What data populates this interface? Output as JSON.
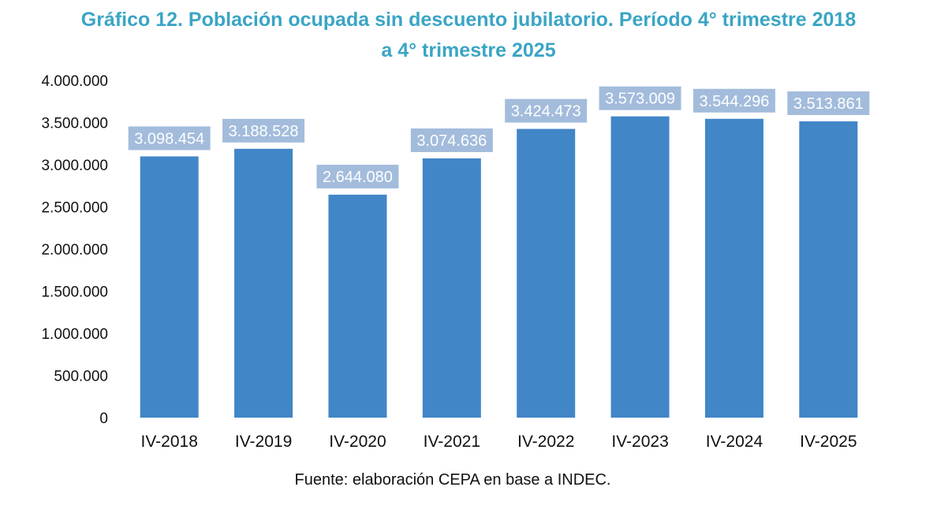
{
  "chart_data": {
    "type": "bar",
    "title_line1": "Gráfico 12. Población ocupada sin descuento jubilatorio. Período 4° trimestre 2018",
    "title_line2": "a 4° trimestre 2025",
    "categories": [
      "IV-2018",
      "IV-2019",
      "IV-2020",
      "IV-2021",
      "IV-2022",
      "IV-2023",
      "IV-2024",
      "IV-2025"
    ],
    "values": [
      3098454,
      3188528,
      2644080,
      3074636,
      3424473,
      3573009,
      3544296,
      3513861
    ],
    "value_labels": [
      "3.098.454",
      "3.188.528",
      "2.644.080",
      "3.074.636",
      "3.424.473",
      "3.573.009",
      "3.544.296",
      "3.513.861"
    ],
    "ylim": [
      0,
      4000000
    ],
    "yticks": [
      0,
      500000,
      1000000,
      1500000,
      2000000,
      2500000,
      3000000,
      3500000,
      4000000
    ],
    "ytick_labels": [
      "0",
      "500.000",
      "1.000.000",
      "1.500.000",
      "2.000.000",
      "2.500.000",
      "3.000.000",
      "3.500.000",
      "4.000.000"
    ],
    "xlabel": "",
    "ylabel": "",
    "grid": false,
    "legend": "none",
    "source": "Fuente: elaboración CEPA en base a INDEC.",
    "colors": {
      "bar": "#4186c7",
      "label_box": "#a3bcdc",
      "title": "#3aa5c4"
    }
  }
}
